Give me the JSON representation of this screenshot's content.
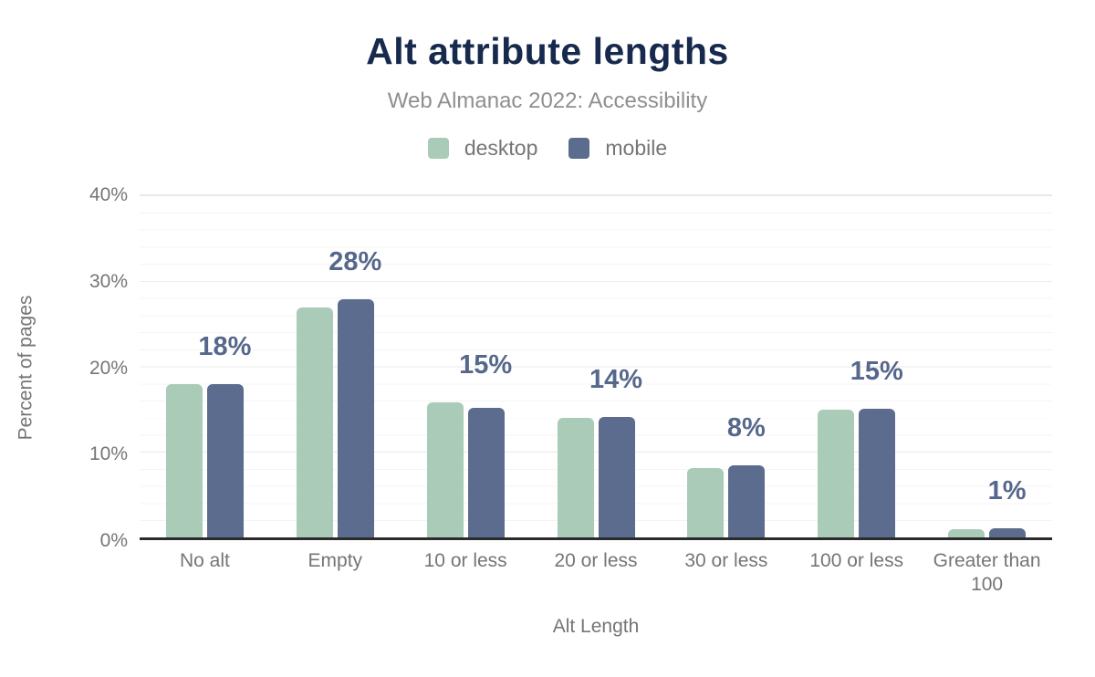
{
  "chart_data": {
    "type": "bar",
    "title": "Alt attribute lengths",
    "subtitle": "Web Almanac 2022: Accessibility",
    "xlabel": "Alt Length",
    "ylabel": "Percent of pages",
    "categories": [
      "No alt",
      "Empty",
      "10 or less",
      "20 or less",
      "30 or less",
      "100 or less",
      "Greater than 100"
    ],
    "series": [
      {
        "name": "desktop",
        "color": "#a9cbb7",
        "values": [
          17.9,
          26.9,
          15.8,
          14.0,
          8.1,
          14.9,
          1.0
        ]
      },
      {
        "name": "mobile",
        "color": "#5b6c8e",
        "values": [
          17.9,
          27.8,
          15.2,
          14.1,
          8.4,
          15.0,
          1.1
        ]
      }
    ],
    "bar_labels": [
      "18%",
      "28%",
      "15%",
      "14%",
      "8%",
      "15%",
      "1%"
    ],
    "ylim": [
      0,
      40
    ],
    "yticks": [
      "0%",
      "10%",
      "20%",
      "30%",
      "40%"
    ],
    "grid": {
      "major_interval_pct": 10,
      "minor_interval_pct": 2,
      "orientation": "horizontal"
    },
    "legend_position": "top",
    "colors": {
      "title": "#172a4d",
      "subtitle": "#8f8f8f",
      "axis_text": "#757575",
      "value_label": "#55688c",
      "axis_line": "#2b2b2b",
      "gridline_major": "#e9e9e9",
      "gridline_minor": "#f4f4f4"
    }
  }
}
